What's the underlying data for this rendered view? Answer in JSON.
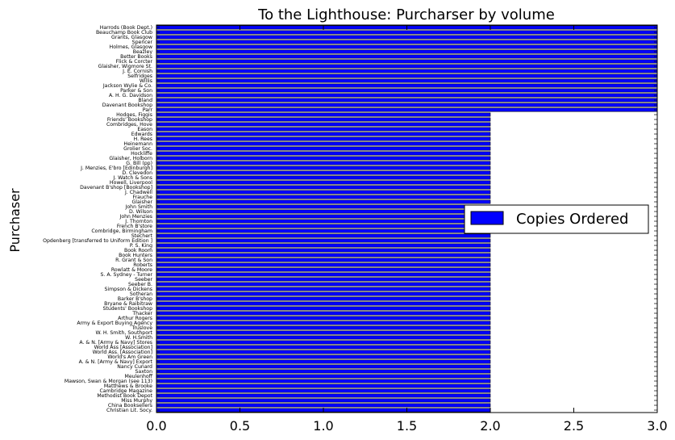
{
  "chart_data": {
    "type": "bar",
    "orientation": "horizontal",
    "title": "To the Lighthouse: Purcharser by volume",
    "xlabel": "",
    "ylabel": "Purchaser",
    "xlim": [
      0,
      3
    ],
    "xticks": [
      "0.0",
      "0.5",
      "1.0",
      "1.5",
      "2.0",
      "2.5",
      "3.0"
    ],
    "legend": {
      "label": "Copies Ordered",
      "placement": "center-right"
    },
    "bar_color": "#0000ff",
    "bar_edge_color": "#000000",
    "categories": [
      "Harrods (Book Dept.)",
      "Beauchamp Book Club",
      "Grants, Glasgow",
      "Spencer",
      "Holmes, Glasgow",
      "Beazley",
      "Better Books",
      "Flick & Corcter",
      "Glaisher, Wigmore St.",
      "J. E. Cornish",
      "Selfridges",
      "Willis",
      "Jackson Wylie & Co.",
      "Parker & Son",
      "A. H. G. Davidson",
      "Bland",
      "Davenant Bookshop",
      "Parr",
      "Hodges, Figgis",
      "Friends' Bookshop",
      "Combridges, Hove",
      "Eason",
      "Edwards",
      "H. Rees",
      "Heinemann",
      "Grolier Soc.",
      "Hockliffe",
      "Glaisher, Holborn",
      "G. Bill (pp)",
      "J. Menzies, E'bro [Edinburgh]",
      "D. Clevedon",
      "J. Watch & Sons",
      "Howell, Liverpool",
      "Davenant B'shop [Bookshop]",
      "J. Chadwell",
      "Frauche",
      "Glaisher",
      "John Smith",
      "D. Wilson",
      "John Menzies",
      "J. Thornton",
      "French B'store",
      "Combridge, Birmingham",
      "Stechert",
      "Opdenberg [transferred to Uniform Edition ]",
      "P. S. King",
      "Book Room",
      "Book Hunters",
      "R. Grant & Son",
      "Roberts",
      "Rowlatt & Moore",
      "S. A. Sydney - Turner",
      "Seeber",
      "Seeber B.",
      "Simpson & Dickens",
      "Sotheran",
      "Barker B'shop",
      "Bryane & Raibitraw",
      "Students' Bookshop",
      "Thacker",
      "Arthur Rogers",
      "Army & Export Buying Agency",
      "Truslove",
      "W. H. Smith, Southport",
      "W. H.Smith",
      "A. & N. [Army & Navy] Stores",
      "World Ass [Association]",
      "World Ass. [Association]",
      "World's Am Green",
      "A. & N. [Army & Navy] Export",
      "Nancy Cunard",
      "Saxton",
      "Meulenhoff",
      "Mawson, Swan & Morgan (see 113)",
      "Matthews & Brooke",
      "Cambridge Magazine",
      "Methodist Book Depot",
      "Miss Murphy",
      "China Booksellers",
      "Christian Lit. Socy."
    ],
    "values": [
      3,
      3,
      3,
      3,
      3,
      3,
      3,
      3,
      3,
      3,
      3,
      3,
      3,
      3,
      3,
      3,
      3,
      3,
      2,
      2,
      2,
      2,
      2,
      2,
      2,
      2,
      2,
      2,
      2,
      2,
      2,
      2,
      2,
      2,
      2,
      2,
      2,
      2,
      2,
      2,
      2,
      2,
      2,
      2,
      2,
      2,
      2,
      2,
      2,
      2,
      2,
      2,
      2,
      2,
      2,
      2,
      2,
      2,
      2,
      2,
      2,
      2,
      2,
      2,
      2,
      2,
      2,
      2,
      2,
      2,
      2,
      2,
      2,
      2,
      2,
      2,
      2,
      2,
      2,
      2
    ]
  }
}
